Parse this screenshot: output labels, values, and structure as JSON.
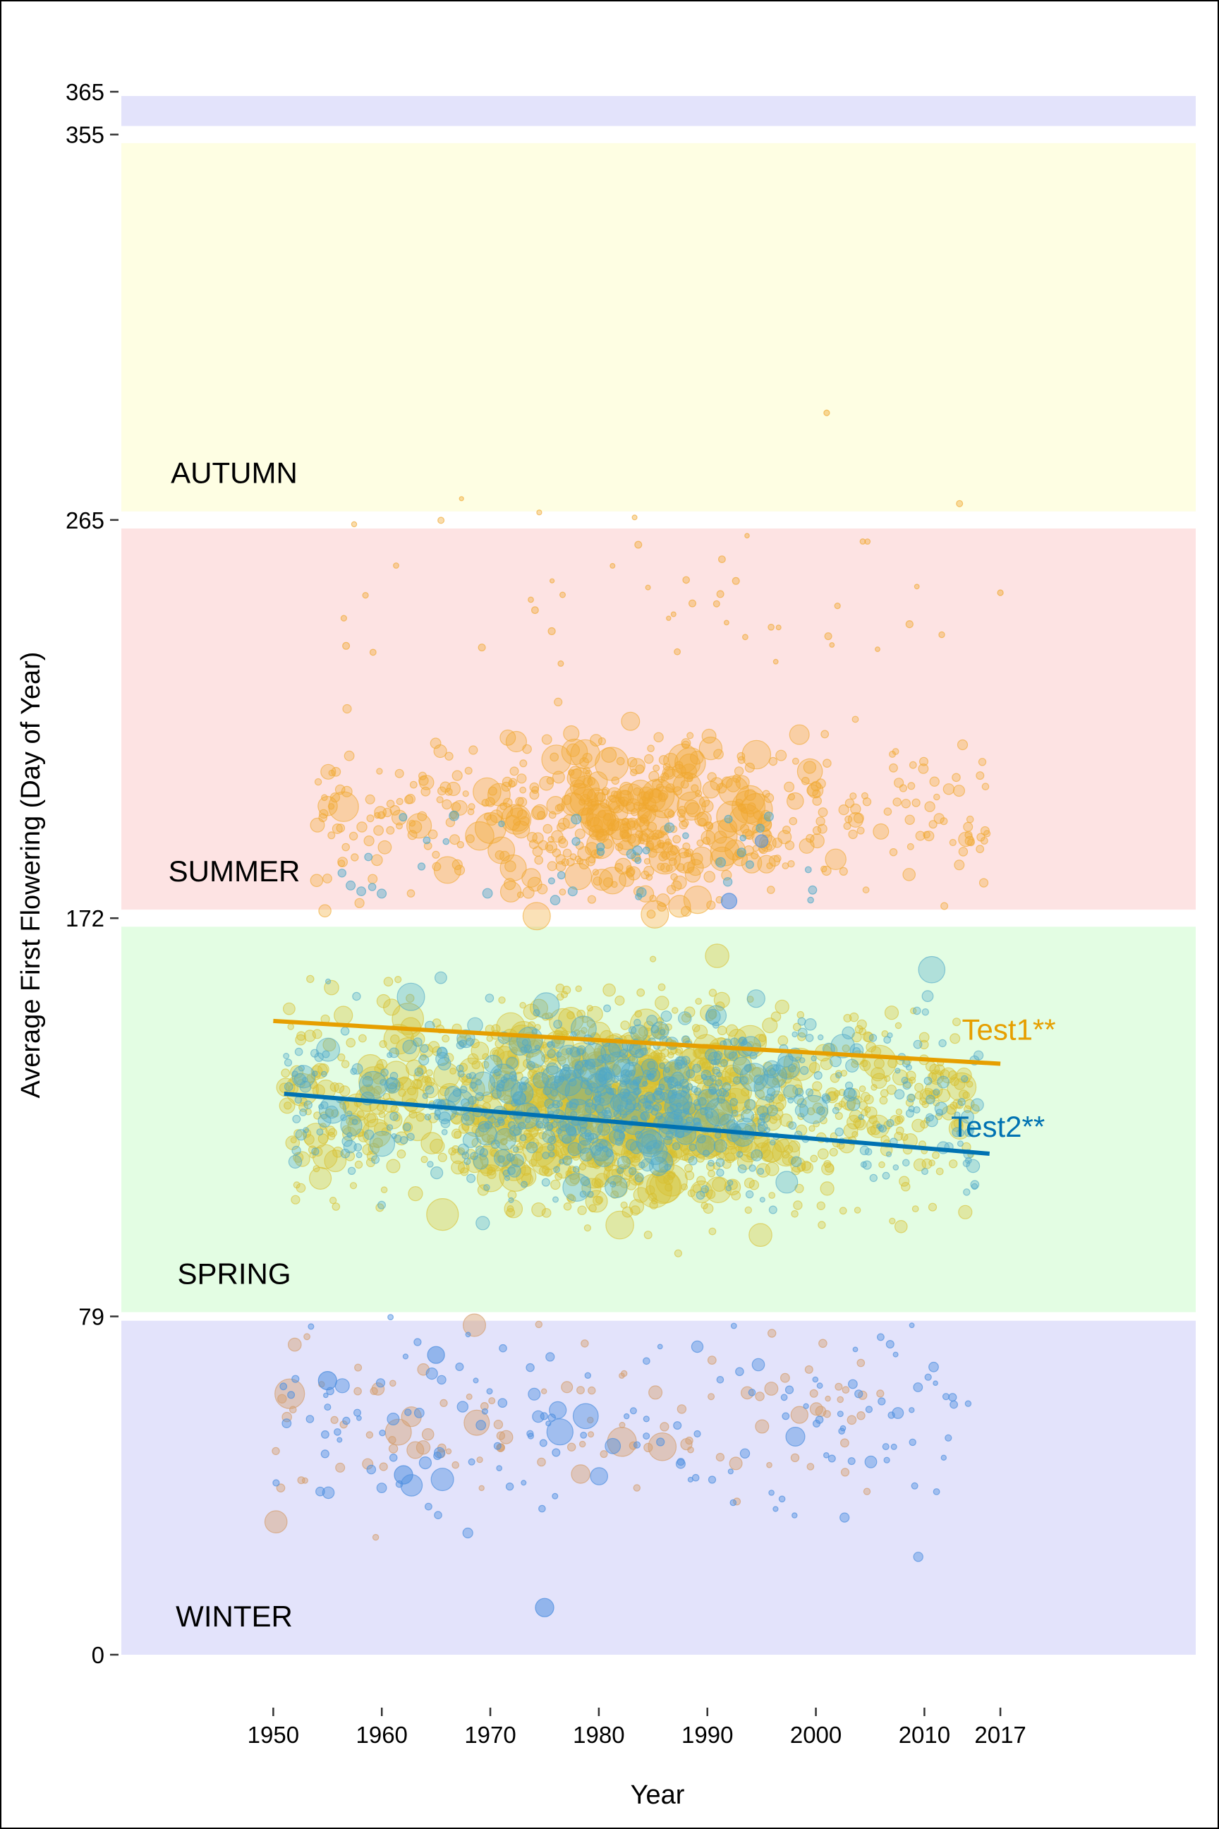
{
  "chart_data": {
    "type": "scatter",
    "title": "",
    "xlabel": "Year",
    "ylabel": "Average First Flowering (Day of Year)",
    "xlim": [
      1936,
      2035
    ],
    "ylim": [
      0,
      365
    ],
    "x_ticks": [
      1950,
      1960,
      1970,
      1980,
      1990,
      2000,
      2010,
      2017
    ],
    "y_ticks": [
      0,
      79,
      172,
      265,
      355,
      365
    ],
    "seasons": [
      {
        "label": "WINTER",
        "start": 0,
        "end": 78,
        "color": "#e3e3fb"
      },
      {
        "label": "SPRING",
        "start": 80,
        "end": 170,
        "color": "#e3fde3"
      },
      {
        "label": "SUMMER",
        "start": 174,
        "end": 263,
        "color": "#fde3e3"
      },
      {
        "label": "AUTUMN",
        "start": 267,
        "end": 353,
        "color": "#fefee3"
      },
      {
        "label": "",
        "start": 357,
        "end": 364,
        "color": "#e3e3fb"
      }
    ],
    "series": [
      {
        "name": "Test1**",
        "color": "#e69f00",
        "trend": {
          "x": [
            1950,
            2017
          ],
          "y": [
            148,
            138
          ]
        }
      },
      {
        "name": "Test2**",
        "color": "#0072b2",
        "trend": {
          "x": [
            1951,
            2016
          ],
          "y": [
            131,
            117
          ]
        }
      }
    ],
    "point_colors": {
      "test1_warm": "#f0a830",
      "test1_spring": "#d8c030",
      "test1_winter": "#d4a070",
      "test2_spring": "#50a8c8",
      "test2_winter": "#5090e0"
    }
  }
}
